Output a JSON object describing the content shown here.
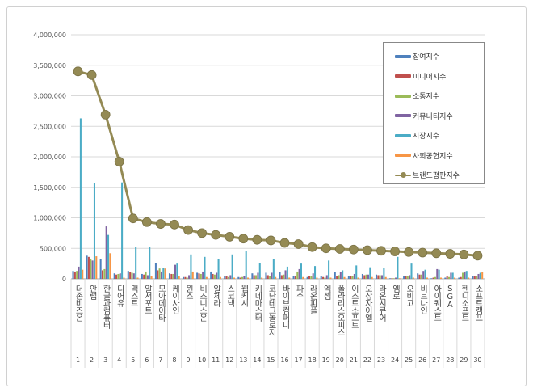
{
  "chart_data": {
    "type": "bar",
    "categories": [
      "더존비즈온",
      "안랩",
      "한글과컴퓨터",
      "디어유",
      "맥스트",
      "알서포트",
      "모아데이타",
      "케이사인",
      "윈스",
      "비즈니스온",
      "알체라",
      "스코넥",
      "웹케시",
      "키네마스터",
      "코난테크놀로지",
      "바이브컴퍼니",
      "파수",
      "라온피플",
      "엑셈",
      "폴라리스오피스",
      "이스트소프트",
      "오상자이엘",
      "라온시큐어",
      "엠로",
      "오비고",
      "비트나인",
      "아이퀘스트",
      "SGA",
      "헨디소프트",
      "소프트캠프"
    ],
    "ranks": [
      "1",
      "2",
      "3",
      "4",
      "5",
      "6",
      "7",
      "8",
      "9",
      "10",
      "11",
      "12",
      "13",
      "14",
      "15",
      "16",
      "17",
      "18",
      "19",
      "20",
      "21",
      "22",
      "23",
      "24",
      "25",
      "26",
      "27",
      "28",
      "29",
      "30"
    ],
    "ylim": [
      0,
      4000000
    ],
    "yticks": [
      "0",
      "500,000",
      "1,000,000",
      "1,500,000",
      "2,000,000",
      "2,500,000",
      "3,000,000",
      "3,500,000",
      "4,000,000"
    ],
    "grid": true,
    "legend_position": "top-right",
    "series": [
      {
        "name": "참여지수",
        "type": "bar",
        "color": "#4f81bd",
        "values": [
          130000,
          380000,
          320000,
          90000,
          130000,
          80000,
          260000,
          90000,
          30000,
          100000,
          120000,
          50000,
          30000,
          90000,
          100000,
          110000,
          50000,
          30000,
          40000,
          110000,
          40000,
          80000,
          70000,
          10000,
          40000,
          90000,
          10000,
          20000,
          20000,
          40000
        ]
      },
      {
        "name": "미디어지수",
        "type": "bar",
        "color": "#c0504d",
        "values": [
          120000,
          360000,
          140000,
          70000,
          110000,
          70000,
          140000,
          80000,
          30000,
          90000,
          80000,
          40000,
          20000,
          60000,
          60000,
          60000,
          40000,
          40000,
          30000,
          50000,
          40000,
          60000,
          60000,
          10000,
          40000,
          70000,
          20000,
          40000,
          30000,
          40000
        ]
      },
      {
        "name": "소통지수",
        "type": "bar",
        "color": "#9bbb59",
        "values": [
          130000,
          320000,
          160000,
          80000,
          100000,
          120000,
          170000,
          80000,
          20000,
          80000,
          70000,
          30000,
          30000,
          60000,
          50000,
          70000,
          120000,
          50000,
          20000,
          60000,
          50000,
          70000,
          60000,
          10000,
          40000,
          70000,
          30000,
          30000,
          100000,
          40000
        ]
      },
      {
        "name": "커뮤니티지수",
        "type": "bar",
        "color": "#8064a2",
        "values": [
          200000,
          300000,
          860000,
          90000,
          90000,
          60000,
          120000,
          230000,
          60000,
          120000,
          100000,
          60000,
          40000,
          100000,
          100000,
          140000,
          160000,
          90000,
          60000,
          110000,
          80000,
          70000,
          60000,
          20000,
          60000,
          130000,
          160000,
          100000,
          120000,
          80000
        ]
      },
      {
        "name": "시장지수",
        "type": "bar",
        "color": "#4bacc6",
        "values": [
          2630000,
          1570000,
          720000,
          1580000,
          520000,
          520000,
          180000,
          250000,
          400000,
          360000,
          320000,
          400000,
          460000,
          260000,
          330000,
          200000,
          250000,
          210000,
          300000,
          140000,
          220000,
          190000,
          180000,
          360000,
          250000,
          150000,
          150000,
          100000,
          130000,
          100000
        ]
      },
      {
        "name": "사회공헌지수",
        "type": "bar",
        "color": "#f79646",
        "values": [
          150000,
          370000,
          420000,
          20000,
          20000,
          40000,
          170000,
          40000,
          120000,
          30000,
          30000,
          20000,
          20000,
          20000,
          30000,
          20000,
          30000,
          20000,
          20000,
          30000,
          20000,
          30000,
          30000,
          10000,
          20000,
          20000,
          20000,
          20000,
          20000,
          110000
        ]
      },
      {
        "name": "브랜드평판지수",
        "type": "line",
        "color": "#948a54",
        "values": [
          3400000,
          3340000,
          2690000,
          1920000,
          990000,
          930000,
          900000,
          890000,
          800000,
          750000,
          720000,
          690000,
          660000,
          640000,
          630000,
          590000,
          570000,
          520000,
          500000,
          490000,
          480000,
          470000,
          460000,
          450000,
          440000,
          430000,
          420000,
          410000,
          400000,
          380000
        ]
      }
    ]
  }
}
